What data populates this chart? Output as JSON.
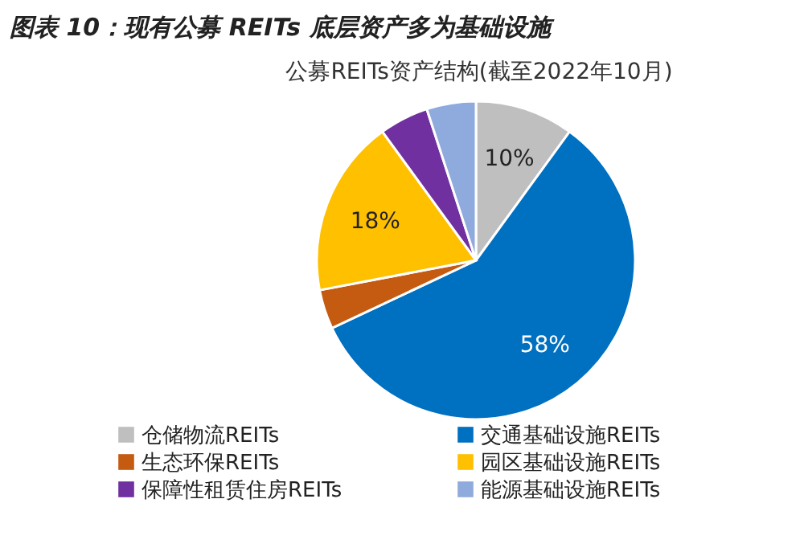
{
  "chart_data": {
    "type": "pie",
    "title": "图表 10：现有公募 REITs 底层资产多为基础设施",
    "subtitle": "公募REITs资产结构(截至2022年10月)",
    "categories": [
      "仓储物流REITs",
      "交通基础设施REITs",
      "生态环保REITs",
      "园区基础设施REITs",
      "保障性租赁住房REITs",
      "能源基础设施REITs"
    ],
    "values": [
      10,
      58,
      4,
      18,
      5,
      5
    ],
    "value_labels": [
      "10%",
      "58%",
      null,
      "18%",
      null,
      null
    ],
    "colors": [
      "#bfbfbf",
      "#0070c0",
      "#c55a11",
      "#ffc000",
      "#7030a0",
      "#8faadc"
    ],
    "legend": "bottom"
  }
}
